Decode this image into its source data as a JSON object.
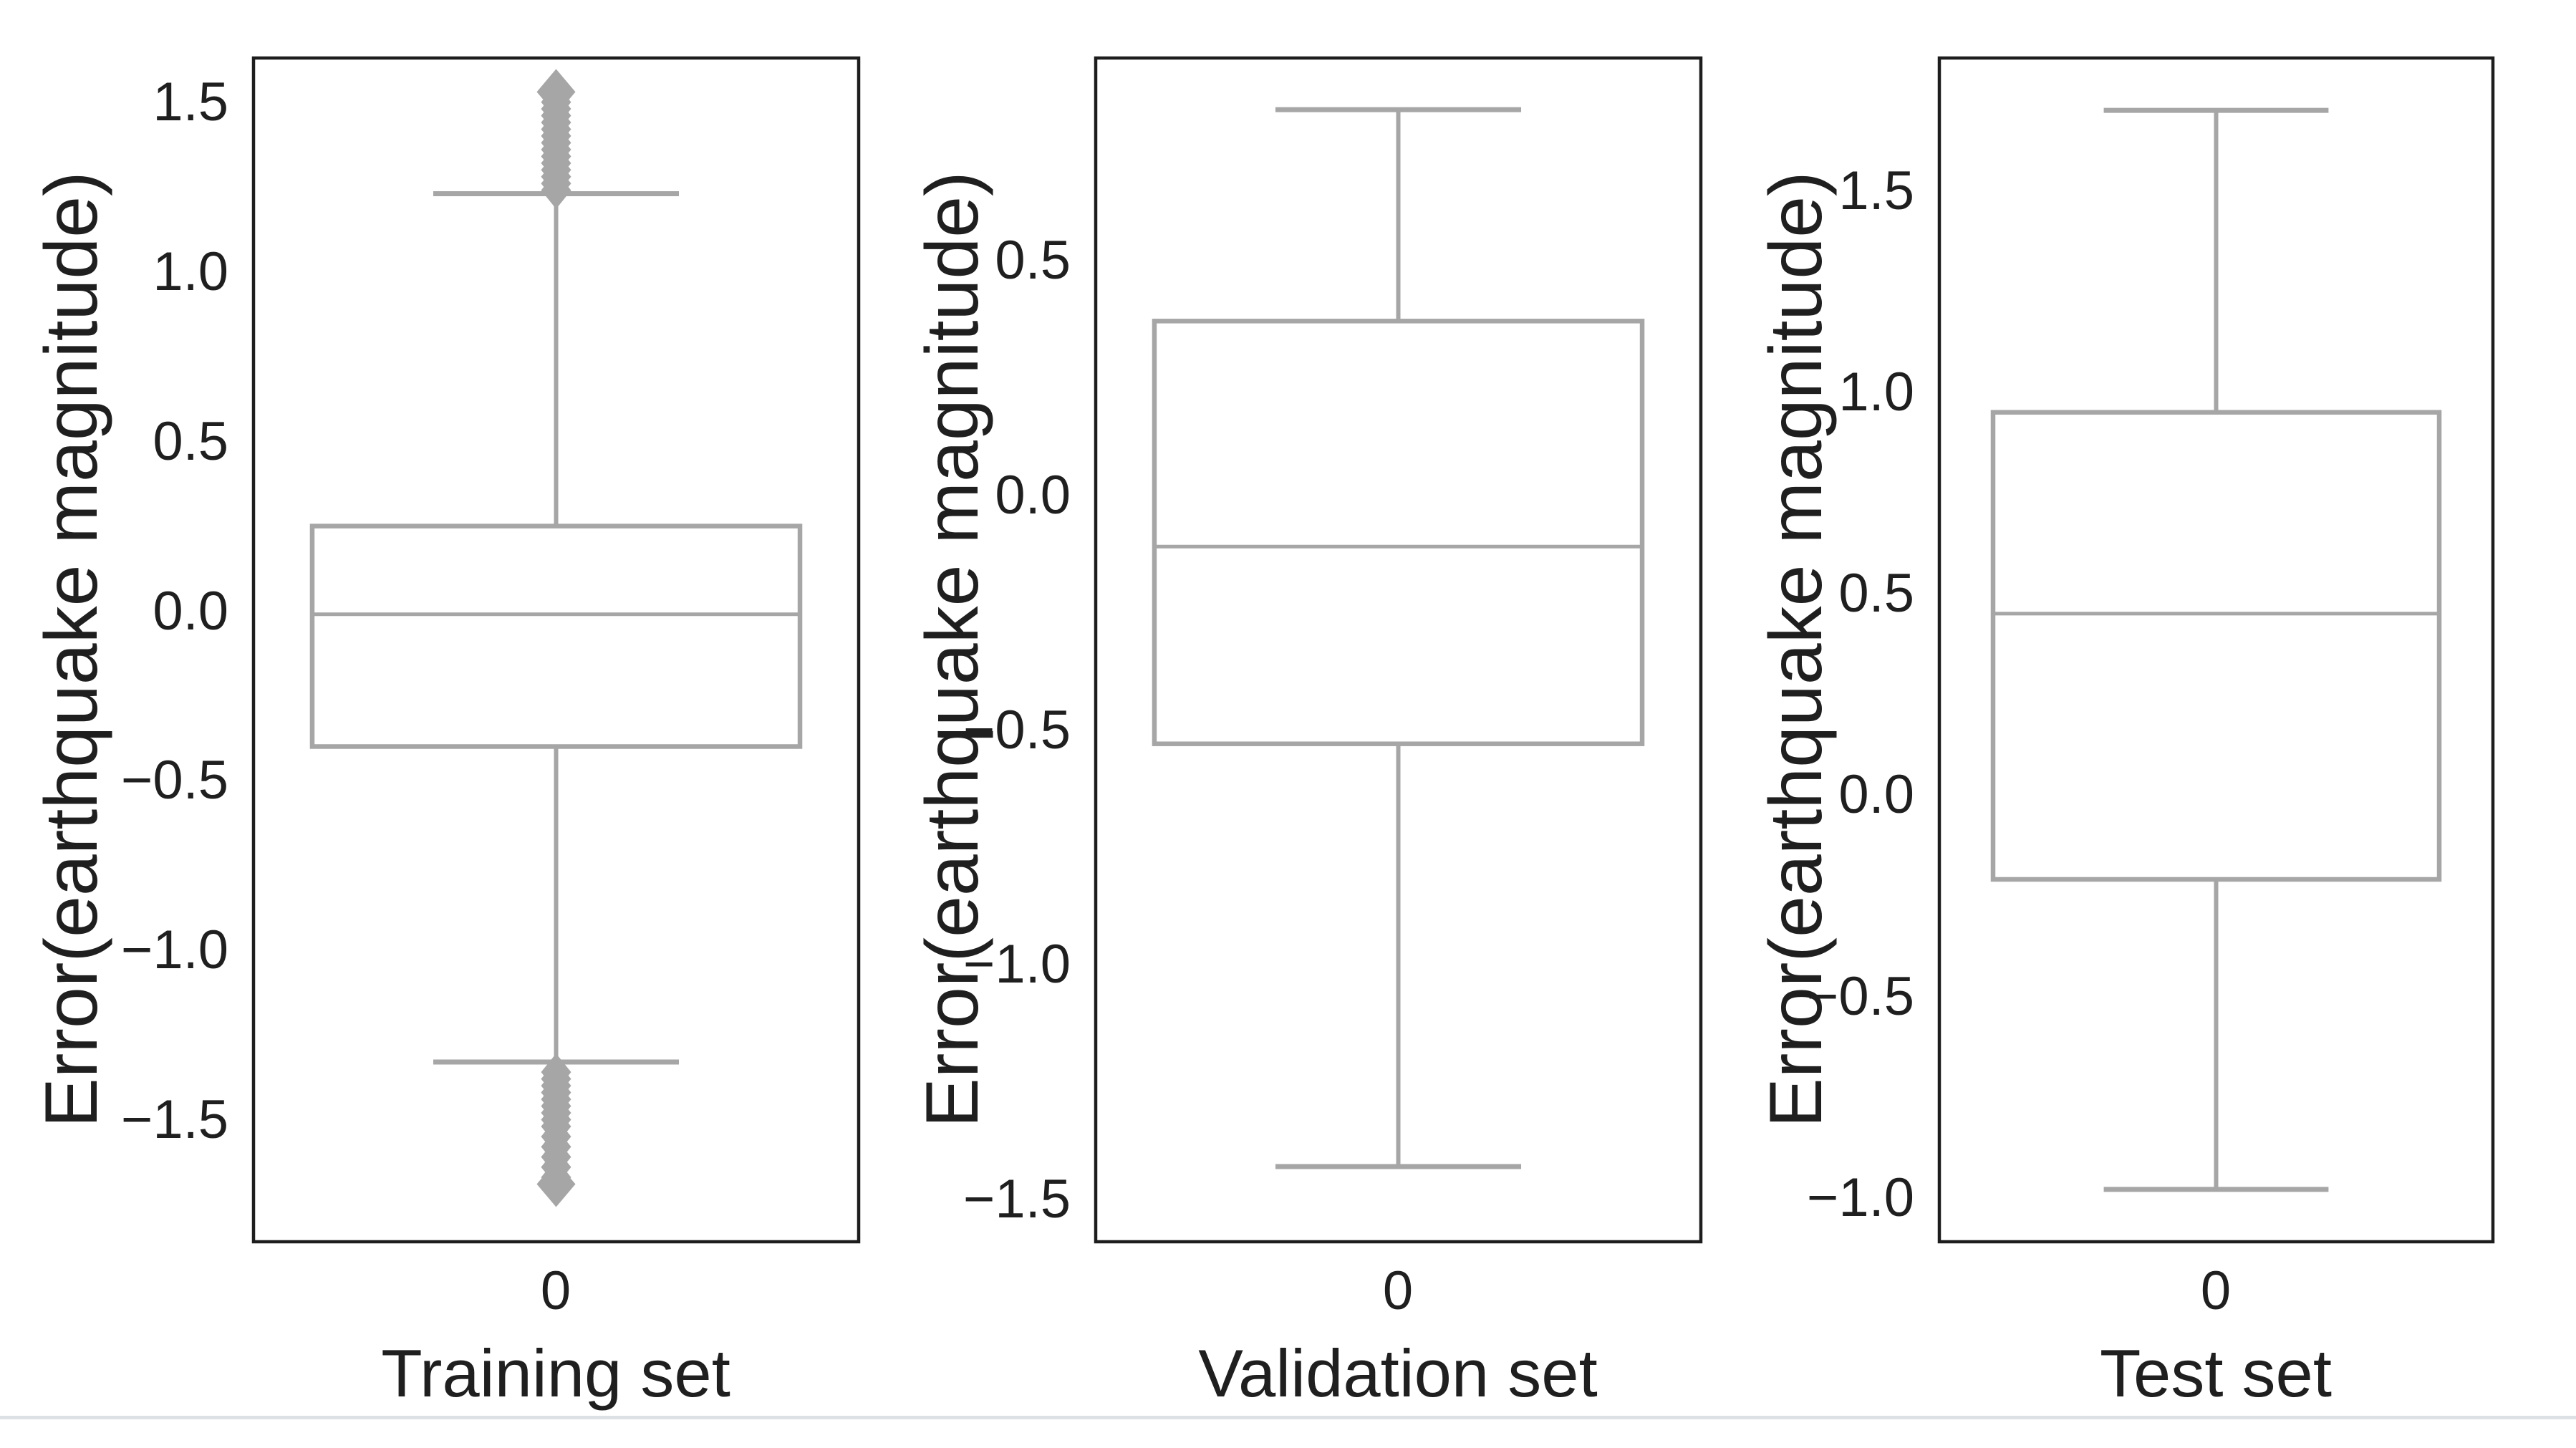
{
  "figure": {
    "background": "#ffffff",
    "frame_color": "#1d1d1d",
    "box_color": "#a6a6a6",
    "flier_color": "#a6a6a6",
    "text_color": "#1f1f1f",
    "separator_color": "#dde0e4"
  },
  "chart_data": [
    {
      "type": "box",
      "title": "",
      "xlabel": "Training set",
      "ylabel": "Error(earthquake magnitude)",
      "x_tick_label": "0",
      "ylim": [
        -1.86,
        1.63
      ],
      "grid": false,
      "yticks": [
        {
          "label": "1.5",
          "value": 1.5
        },
        {
          "label": "1.0",
          "value": 1.0
        },
        {
          "label": "0.5",
          "value": 0.5
        },
        {
          "label": "0.0",
          "value": 0.0
        },
        {
          "label": "−0.5",
          "value": -0.5
        },
        {
          "label": "−1.0",
          "value": -1.0
        },
        {
          "label": "−1.5",
          "value": -1.5
        }
      ],
      "box": {
        "whisker_low": -1.33,
        "q1": -0.4,
        "median": -0.01,
        "q3": 0.25,
        "whisker_high": 1.23
      },
      "fliers_high": [
        1.24,
        1.26,
        1.28,
        1.3,
        1.32,
        1.34,
        1.36,
        1.38,
        1.4,
        1.42,
        1.44,
        1.46,
        1.48,
        1.5,
        1.53
      ],
      "fliers_low": [
        -1.36,
        -1.38,
        -1.4,
        -1.42,
        -1.44,
        -1.46,
        -1.48,
        -1.5,
        -1.52,
        -1.55,
        -1.58,
        -1.61,
        -1.64,
        -1.67,
        -1.69
      ]
    },
    {
      "type": "box",
      "title": "",
      "xlabel": "Validation set",
      "ylabel": "Error(earthquake magnitude)",
      "x_tick_label": "0",
      "ylim": [
        -1.59,
        0.93
      ],
      "grid": false,
      "yticks": [
        {
          "label": "0.5",
          "value": 0.5
        },
        {
          "label": "0.0",
          "value": 0.0
        },
        {
          "label": "−0.5",
          "value": -0.5
        },
        {
          "label": "−1.0",
          "value": -1.0
        },
        {
          "label": "−1.5",
          "value": -1.5
        }
      ],
      "box": {
        "whisker_low": -1.43,
        "q1": -0.53,
        "median": -0.11,
        "q3": 0.37,
        "whisker_high": 0.82
      },
      "fliers_high": [],
      "fliers_low": []
    },
    {
      "type": "box",
      "title": "",
      "xlabel": "Test set",
      "ylabel": "Error(earthquake magnitude)",
      "x_tick_label": "0",
      "ylim": [
        -1.11,
        1.83
      ],
      "grid": false,
      "yticks": [
        {
          "label": "1.5",
          "value": 1.5
        },
        {
          "label": "1.0",
          "value": 1.0
        },
        {
          "label": "0.5",
          "value": 0.5
        },
        {
          "label": "0.0",
          "value": 0.0
        },
        {
          "label": "−0.5",
          "value": -0.5
        },
        {
          "label": "−1.0",
          "value": -1.0
        }
      ],
      "box": {
        "whisker_low": -0.98,
        "q1": -0.21,
        "median": 0.45,
        "q3": 0.95,
        "whisker_high": 1.7
      },
      "fliers_high": [],
      "fliers_low": []
    }
  ]
}
